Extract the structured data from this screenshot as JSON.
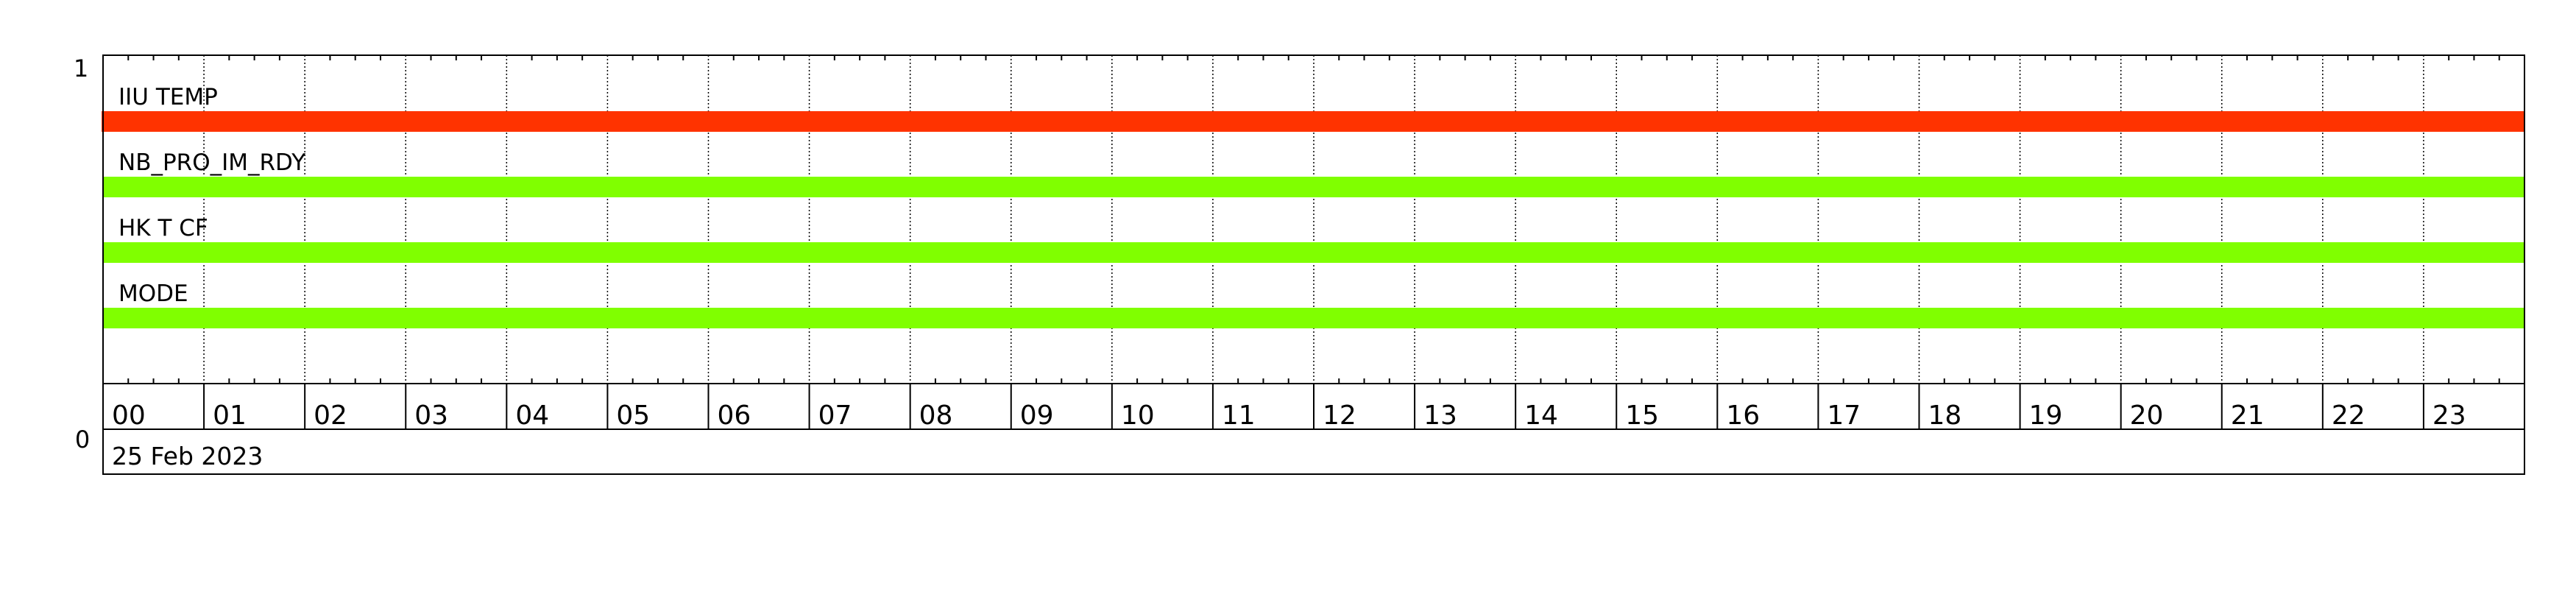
{
  "chart_data": {
    "type": "timeline",
    "date_label": "25 Feb 2023",
    "xlim_hours": [
      0,
      24
    ],
    "x_tick_labels": [
      "00",
      "01",
      "02",
      "03",
      "04",
      "05",
      "06",
      "07",
      "08",
      "09",
      "10",
      "11",
      "12",
      "13",
      "14",
      "15",
      "16",
      "17",
      "18",
      "19",
      "20",
      "21",
      "22",
      "23"
    ],
    "minor_ticks_per_hour": 4,
    "grid": "vertical dotted at each hour",
    "y_tick_labels": {
      "top": "1",
      "bottom": "0"
    },
    "series": [
      {
        "name": "IIU TEMP",
        "start_hour": 0,
        "end_hour": 24,
        "color": "#FF3300"
      },
      {
        "name": "NB_PRO_IM_RDY",
        "start_hour": 0,
        "end_hour": 24,
        "color": "#80FF00"
      },
      {
        "name": "HK T CF",
        "start_hour": 0,
        "end_hour": 24,
        "color": "#80FF00"
      },
      {
        "name": "MODE",
        "start_hour": 0,
        "end_hour": 24,
        "color": "#80FF00"
      }
    ]
  }
}
